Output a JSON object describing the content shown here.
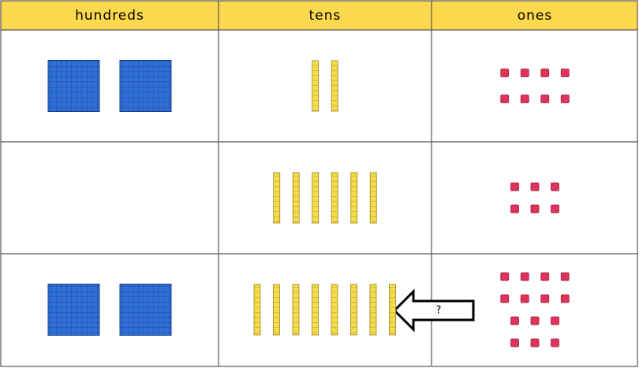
{
  "table": {
    "header": [
      "hundreds",
      "tens",
      "ones"
    ],
    "rows": [
      [
        2,
        2,
        8
      ],
      [
        0,
        6,
        6
      ],
      [
        2,
        8,
        14
      ]
    ]
  },
  "arrow_label": "?"
}
